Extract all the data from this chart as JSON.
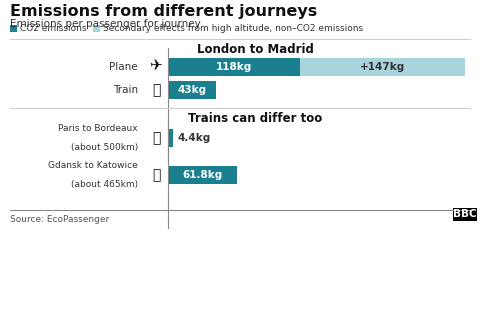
{
  "title": "Emissions from different journeys",
  "subtitle": "Emissions per passenger for journey",
  "legend_co2": "CO2 emissions",
  "legend_secondary": "Secondary effects from high altitude, non–CO2 emissions",
  "color_co2": "#1a7f8e",
  "color_secondary": "#a8d5db",
  "section1_title": "London to Madrid",
  "section2_title": "Trains can differ too",
  "source": "Source: EcoPassenger",
  "bbc_text": "BBC",
  "background_color": "#ffffff",
  "plane_co2": 118,
  "plane_secondary": 147,
  "train_co2": 43,
  "paris_co2": 4.4,
  "gdansk_co2": 61.8,
  "max_value": 265
}
